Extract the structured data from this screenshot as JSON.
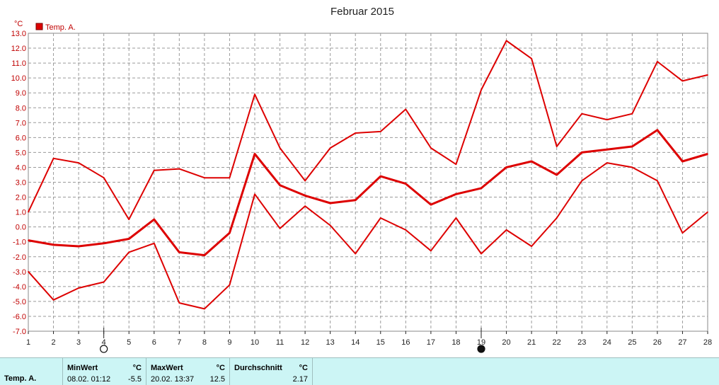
{
  "chart_data": {
    "type": "line",
    "title": "Februar 2015",
    "y_unit": "°C",
    "legend": {
      "label": "Temp. A.",
      "color": "#dd0000",
      "placement": "top-left"
    },
    "ylim": [
      -7.0,
      13.0
    ],
    "y_ticks": [
      "13.0",
      "12.0",
      "11.0",
      "10.0",
      "9.0",
      "8.0",
      "7.0",
      "6.0",
      "5.0",
      "4.0",
      "3.0",
      "2.0",
      "1.0",
      "0.0",
      "-1.0",
      "-2.0",
      "-3.0",
      "-4.0",
      "-5.0",
      "-6.0",
      "-7.0"
    ],
    "x": [
      1,
      2,
      3,
      4,
      5,
      6,
      7,
      8,
      9,
      10,
      11,
      12,
      13,
      14,
      15,
      16,
      17,
      18,
      19,
      20,
      21,
      22,
      23,
      24,
      25,
      26,
      27,
      28
    ],
    "grid": true,
    "moon_phases": [
      {
        "day": 4,
        "phase": "full-moon-icon"
      },
      {
        "day": 19,
        "phase": "new-moon-icon"
      }
    ],
    "series": [
      {
        "kind": "max",
        "values": [
          1.0,
          4.6,
          4.3,
          3.3,
          0.5,
          3.8,
          3.9,
          3.3,
          3.3,
          8.9,
          5.3,
          3.1,
          5.3,
          6.3,
          6.4,
          7.9,
          5.3,
          4.2,
          9.2,
          12.5,
          11.3,
          5.4,
          7.6,
          7.2,
          7.6,
          11.1,
          9.8,
          10.2
        ]
      },
      {
        "kind": "mean",
        "values": [
          -0.9,
          -1.2,
          -1.3,
          -1.1,
          -0.8,
          0.5,
          -1.7,
          -1.9,
          -0.4,
          4.9,
          2.8,
          2.1,
          1.6,
          1.8,
          3.4,
          2.9,
          1.5,
          2.2,
          2.6,
          4.0,
          4.4,
          3.5,
          5.0,
          5.2,
          5.4,
          6.5,
          4.4,
          4.9
        ]
      },
      {
        "kind": "min",
        "values": [
          -3.0,
          -4.9,
          -4.1,
          -3.7,
          -1.7,
          -1.1,
          -5.1,
          -5.5,
          -3.9,
          2.2,
          -0.1,
          1.4,
          0.1,
          -1.8,
          0.6,
          -0.2,
          -1.6,
          0.6,
          -1.8,
          -0.2,
          -1.3,
          0.6,
          3.1,
          4.3,
          4.0,
          3.1,
          -0.4,
          1.0
        ]
      }
    ],
    "colors": {
      "line": "#dd0000",
      "grid": "#9a9a9a",
      "frame": "#8a8a8a"
    }
  },
  "stats": {
    "row_label": "Temp. A.",
    "min": {
      "header": "MinWert",
      "unit": "°C",
      "datetime": "08.02.  01:12",
      "value": "-5.5"
    },
    "max": {
      "header": "MaxWert",
      "unit": "°C",
      "datetime": "20.02.  13:37",
      "value": "12.5"
    },
    "avg": {
      "header": "Durchschnitt",
      "unit": "°C",
      "value": "2.17"
    }
  }
}
